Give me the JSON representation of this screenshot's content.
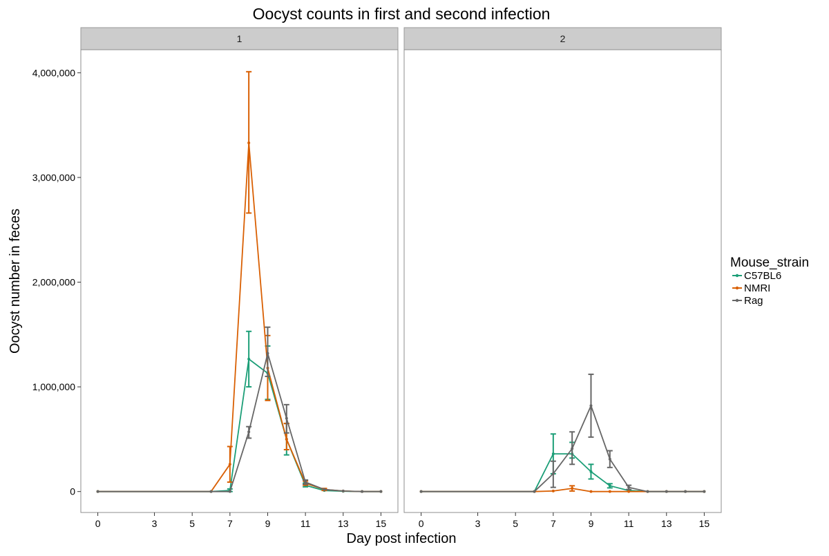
{
  "chart_data": {
    "type": "line",
    "title": "Oocyst counts in first and second infection",
    "xlabel": "Day post infection",
    "ylabel": "Oocyst number in feces",
    "facet_labels": [
      "1",
      "2"
    ],
    "xlim": [
      -0.9,
      15.9
    ],
    "ylim": [
      -200000,
      4220000
    ],
    "x_ticks": [
      0,
      3,
      5,
      7,
      9,
      11,
      13,
      15
    ],
    "y_ticks": [
      0,
      1000000,
      2000000,
      3000000,
      4000000
    ],
    "y_tick_labels": [
      "0",
      "1,000,000",
      "2,000,000",
      "3,000,000",
      "4,000,000"
    ],
    "grid": false,
    "legend": {
      "title": "Mouse_strain",
      "position": "right"
    },
    "series": [
      {
        "name": "C57BL6",
        "color": "#1b9e77",
        "panels": [
          {
            "x": [
              0,
              6,
              7,
              8,
              9,
              10,
              11,
              12,
              13,
              14,
              15
            ],
            "y": [
              0,
              0,
              10000,
              1265000,
              1130000,
              500000,
              60000,
              10000,
              3000,
              0,
              0
            ],
            "ymin": [
              null,
              null,
              0,
              1000000,
              880000,
              350000,
              45000,
              null,
              null,
              null,
              null
            ],
            "ymax": [
              null,
              null,
              25000,
              1530000,
              1390000,
              650000,
              80000,
              null,
              null,
              null,
              null
            ]
          },
          {
            "x": [
              0,
              6,
              7,
              8,
              9,
              10,
              11,
              12,
              13,
              14,
              15
            ],
            "y": [
              0,
              0,
              360000,
              360000,
              190000,
              55000,
              10000,
              0,
              0,
              0,
              0
            ],
            "ymin": [
              null,
              null,
              170000,
              320000,
              120000,
              35000,
              null,
              null,
              null,
              null,
              null
            ],
            "ymax": [
              null,
              null,
              550000,
              470000,
              260000,
              75000,
              null,
              null,
              null,
              null,
              null
            ]
          }
        ]
      },
      {
        "name": "NMRI",
        "color": "#d95f02",
        "panels": [
          {
            "x": [
              0,
              6,
              7,
              8,
              9,
              10,
              11,
              12,
              13,
              14,
              15
            ],
            "y": [
              0,
              0,
              260000,
              3330000,
              1180000,
              500000,
              80000,
              20000,
              5000,
              0,
              0
            ],
            "ymin": [
              null,
              null,
              90000,
              2660000,
              870000,
              400000,
              60000,
              10000,
              null,
              null,
              null
            ],
            "ymax": [
              null,
              null,
              430000,
              4010000,
              1490000,
              650000,
              100000,
              30000,
              null,
              null,
              null
            ]
          },
          {
            "x": [
              0,
              6,
              7,
              8,
              9,
              10,
              11,
              12,
              13,
              14,
              15
            ],
            "y": [
              0,
              0,
              5000,
              30000,
              0,
              0,
              0,
              0,
              0,
              0,
              0
            ],
            "ymin": [
              null,
              null,
              null,
              5000,
              null,
              null,
              null,
              null,
              null,
              null,
              null
            ],
            "ymax": [
              null,
              null,
              null,
              55000,
              null,
              null,
              null,
              null,
              null,
              null,
              null
            ]
          }
        ]
      },
      {
        "name": "Rag",
        "color": "#666666",
        "panels": [
          {
            "x": [
              0,
              6,
              7,
              8,
              9,
              10,
              11,
              12,
              13,
              14,
              15
            ],
            "y": [
              0,
              0,
              0,
              570000,
              1320000,
              700000,
              90000,
              20000,
              5000,
              0,
              0
            ],
            "ymin": [
              null,
              null,
              null,
              510000,
              1100000,
              560000,
              70000,
              null,
              null,
              null,
              null
            ],
            "ymax": [
              null,
              null,
              null,
              620000,
              1570000,
              830000,
              110000,
              null,
              null,
              null,
              null
            ]
          },
          {
            "x": [
              0,
              6,
              7,
              8,
              9,
              10,
              11,
              12,
              13,
              14,
              15
            ],
            "y": [
              0,
              0,
              170000,
              410000,
              820000,
              310000,
              40000,
              0,
              0,
              0,
              0
            ],
            "ymin": [
              null,
              null,
              40000,
              260000,
              520000,
              230000,
              20000,
              null,
              null,
              null,
              null
            ],
            "ymax": [
              null,
              null,
              290000,
              570000,
              1120000,
              390000,
              60000,
              null,
              null,
              null,
              null
            ]
          }
        ]
      }
    ]
  }
}
